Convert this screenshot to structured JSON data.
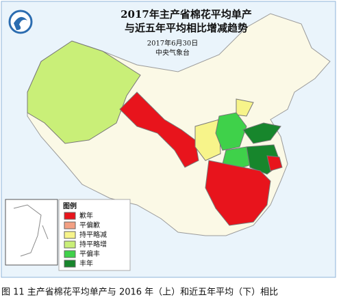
{
  "header": {
    "title_line1": "2017年主产省棉花平均单产",
    "title_line2": "与近五年平均相比增减趋势",
    "date": "2017年6月30日",
    "agency": "中央气象台"
  },
  "legend": {
    "title": "图例",
    "items": [
      {
        "label": "歉年",
        "color": "#e8141c"
      },
      {
        "label": "平偏歉",
        "color": "#f3a083"
      },
      {
        "label": "持平略减",
        "color": "#f7f48a"
      },
      {
        "label": "持平略增",
        "color": "#c9ef78"
      },
      {
        "label": "平偏丰",
        "color": "#3fd14a"
      },
      {
        "label": "丰年",
        "color": "#17862c"
      }
    ]
  },
  "caption": "图 11  主产省棉花平均单产与 2016 年（上）和近五年平均（下）相比"
}
